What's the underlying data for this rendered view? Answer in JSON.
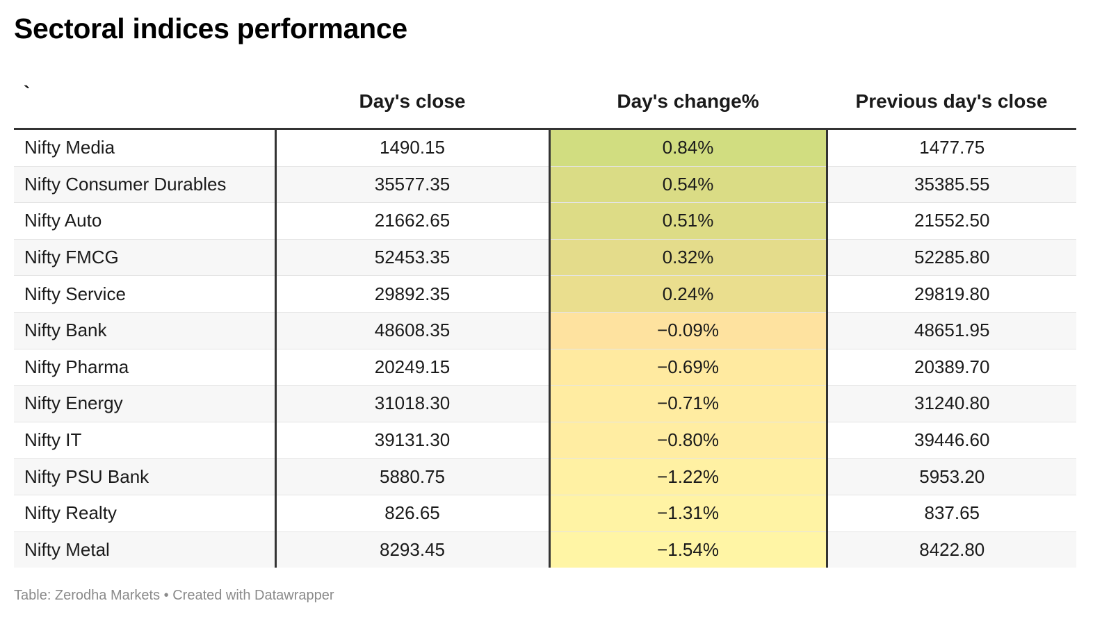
{
  "title": "Sectoral indices performance",
  "footer": "Table: Zerodha Markets • Created with Datawrapper",
  "chart_data": {
    "type": "table",
    "title": "Sectoral indices performance",
    "columns": [
      "`",
      "Day's close",
      "Day's change%",
      "Previous day's close"
    ],
    "rows": [
      {
        "name": "Nifty Media",
        "close": "1490.15",
        "change": "0.84%",
        "change_value": 0.84,
        "prev": "1477.75",
        "color": "#d1dd80"
      },
      {
        "name": "Nifty Consumer Durables",
        "close": "35577.35",
        "change": "0.54%",
        "change_value": 0.54,
        "prev": "35385.55",
        "color": "#dadc85"
      },
      {
        "name": "Nifty Auto",
        "close": "21662.65",
        "change": "0.51%",
        "change_value": 0.51,
        "prev": "21552.50",
        "color": "#dddc86"
      },
      {
        "name": "Nifty FMCG",
        "close": "52453.35",
        "change": "0.32%",
        "change_value": 0.32,
        "prev": "52285.80",
        "color": "#e4dc8b"
      },
      {
        "name": "Nifty Service",
        "close": "29892.35",
        "change": "0.24%",
        "change_value": 0.24,
        "prev": "29819.80",
        "color": "#eade8e"
      },
      {
        "name": "Nifty Bank",
        "close": "48608.35",
        "change": "−0.09%",
        "change_value": -0.09,
        "prev": "48651.95",
        "color": "#fee29f"
      },
      {
        "name": "Nifty Pharma",
        "close": "20249.15",
        "change": "−0.69%",
        "change_value": -0.69,
        "prev": "20389.70",
        "color": "#ffeaa0"
      },
      {
        "name": "Nifty Energy",
        "close": "31018.30",
        "change": "−0.71%",
        "change_value": -0.71,
        "prev": "31240.80",
        "color": "#ffeca1"
      },
      {
        "name": "Nifty IT",
        "close": "39131.30",
        "change": "−0.80%",
        "change_value": -0.8,
        "prev": "39446.60",
        "color": "#ffeda2"
      },
      {
        "name": "Nifty PSU Bank",
        "close": "5880.75",
        "change": "−1.22%",
        "change_value": -1.22,
        "prev": "5953.20",
        "color": "#fff1a3"
      },
      {
        "name": "Nifty Realty",
        "close": "826.65",
        "change": "−1.31%",
        "change_value": -1.31,
        "prev": "837.65",
        "color": "#fff3a4"
      },
      {
        "name": "Nifty Metal",
        "close": "8293.45",
        "change": "−1.54%",
        "change_value": -1.54,
        "prev": "8422.80",
        "color": "#fff5a5"
      }
    ]
  }
}
